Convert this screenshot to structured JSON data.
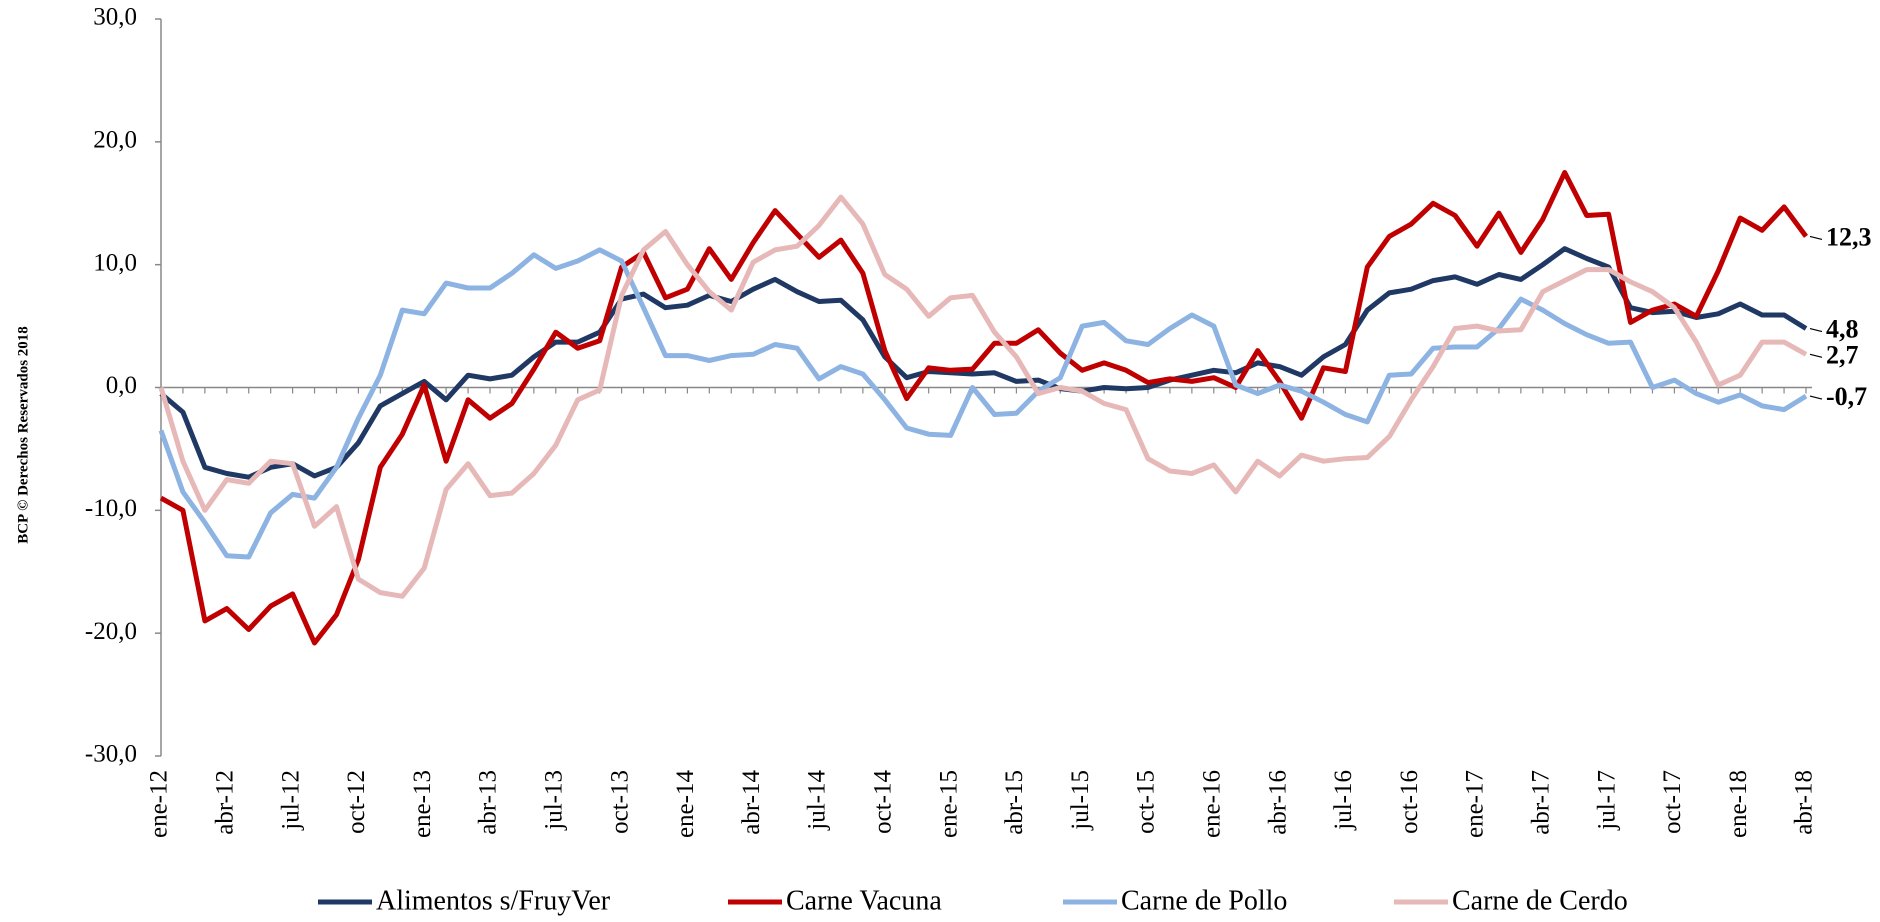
{
  "chart_data": {
    "type": "line",
    "side_note": "BCP © Derechos Reservados 2018",
    "categories": [
      "ene-12",
      null,
      null,
      "abr-12",
      null,
      null,
      "jul-12",
      null,
      null,
      "oct-12",
      null,
      null,
      "ene-13",
      null,
      null,
      "abr-13",
      null,
      null,
      "jul-13",
      null,
      null,
      "oct-13",
      null,
      null,
      "ene-14",
      null,
      null,
      "abr-14",
      null,
      null,
      "jul-14",
      null,
      null,
      "oct-14",
      null,
      null,
      "ene-15",
      null,
      null,
      "abr-15",
      null,
      null,
      "jul-15",
      null,
      null,
      "oct-15",
      null,
      null,
      "ene-16",
      null,
      null,
      "abr-16",
      null,
      null,
      "jul-16",
      null,
      null,
      "oct-16",
      null,
      null,
      "ene-17",
      null,
      null,
      "abr-17",
      null,
      null,
      "jul-17",
      null,
      null,
      "oct-17",
      null,
      null,
      "ene-18",
      null,
      null,
      "abr-18"
    ],
    "series": [
      {
        "name": "Alimentos s/FruyVer",
        "color": "#1f3864",
        "values": [
          -0.5,
          -2,
          -6.5,
          -7,
          -7.3,
          -6.5,
          -6.2,
          -7.2,
          -6.5,
          -4.5,
          -1.5,
          -0.5,
          0.5,
          -1,
          1,
          0.7,
          1,
          2.5,
          3.7,
          3.7,
          4.5,
          7.2,
          7.6,
          6.5,
          6.7,
          7.5,
          7,
          8,
          8.8,
          7.8,
          7,
          7.1,
          5.5,
          2.5,
          0.8,
          1.3,
          1.2,
          1.1,
          1.2,
          0.5,
          0.6,
          -0.1,
          -0.3,
          0,
          -0.1,
          0,
          0.6,
          1,
          1.4,
          1.2,
          2,
          1.7,
          1,
          2.5,
          3.5,
          6.3,
          7.7,
          8,
          8.7,
          9,
          8.4,
          9.2,
          8.8,
          10,
          11.3,
          10.5,
          9.8,
          6.5,
          6.1,
          6.2,
          5.7,
          6,
          6.8,
          5.9,
          5.9,
          4.8
        ],
        "value_labels": {
          "75": "4,8"
        }
      },
      {
        "name": "Carne Vacuna",
        "color": "#c00000",
        "values": [
          -9,
          -10,
          -19,
          -18,
          -19.7,
          -17.8,
          -16.8,
          -20.8,
          -18.5,
          -14,
          -6.5,
          -3.8,
          0.2,
          -6,
          -1,
          -2.5,
          -1.3,
          1.5,
          4.5,
          3.2,
          3.8,
          9.8,
          11,
          7.3,
          8,
          11.3,
          8.8,
          11.8,
          14.4,
          12.5,
          10.6,
          12,
          9.3,
          3,
          -0.9,
          1.6,
          1.4,
          1.5,
          3.6,
          3.6,
          4.7,
          2.8,
          1.4,
          2,
          1.4,
          0.4,
          0.7,
          0.5,
          0.8,
          0,
          3,
          0.5,
          -2.5,
          1.6,
          1.3,
          9.8,
          12.3,
          13.3,
          15,
          14,
          11.5,
          14.2,
          11,
          13.7,
          17.5,
          14,
          14.1,
          5.3,
          6.3,
          6.8,
          5.8,
          9.5,
          13.8,
          12.8,
          14.7,
          12.3
        ],
        "value_labels": {
          "75": "12,3"
        }
      },
      {
        "name": "Carne de Pollo",
        "color": "#8db3e2",
        "values": [
          -3.5,
          -8.5,
          -11,
          -13.7,
          -13.8,
          -10.2,
          -8.7,
          -9,
          -6.5,
          -2.5,
          1,
          6.3,
          6,
          8.5,
          8.1,
          8.1,
          9.3,
          10.8,
          9.7,
          10.3,
          11.2,
          10.3,
          6.5,
          2.6,
          2.6,
          2.2,
          2.6,
          2.7,
          3.5,
          3.2,
          0.7,
          1.7,
          1.1,
          -1,
          -3.3,
          -3.8,
          -3.9,
          0,
          -2.2,
          -2.1,
          -0.3,
          0.8,
          5,
          5.3,
          3.8,
          3.5,
          4.8,
          5.9,
          5,
          0.2,
          -0.5,
          0.2,
          -0.3,
          -1.2,
          -2.2,
          -2.8,
          1,
          1.1,
          3.2,
          3.3,
          3.3,
          4.8,
          7.2,
          6.3,
          5.2,
          4.3,
          3.6,
          3.7,
          0,
          0.6,
          -0.5,
          -1.2,
          -0.6,
          -1.5,
          -1.8,
          -0.7
        ],
        "value_labels": {
          "75": "-0,7"
        }
      },
      {
        "name": "Carne de Cerdo",
        "color": "#e6b8b7",
        "values": [
          0,
          -6,
          -10,
          -7.5,
          -7.8,
          -6,
          -6.2,
          -11.3,
          -9.7,
          -15.6,
          -16.7,
          -17,
          -14.7,
          -8.3,
          -6.2,
          -8.8,
          -8.6,
          -7,
          -4.7,
          -1,
          -0.2,
          7.5,
          11.2,
          12.7,
          10,
          7.8,
          6.3,
          10.2,
          11.2,
          11.5,
          13.2,
          15.5,
          13.3,
          9.2,
          8,
          5.8,
          7.3,
          7.5,
          4.5,
          2.5,
          -0.5,
          0,
          -0.3,
          -1.3,
          -1.8,
          -5.8,
          -6.8,
          -7,
          -6.3,
          -8.5,
          -6,
          -7.2,
          -5.5,
          -6,
          -5.8,
          -5.7,
          -4,
          -1,
          1.7,
          4.8,
          5,
          4.6,
          4.7,
          7.8,
          8.7,
          9.6,
          9.6,
          8.6,
          7.8,
          6.5,
          3.7,
          0.2,
          1,
          3.7,
          3.7,
          2.7
        ],
        "value_labels": {
          "75": "2,7"
        }
      }
    ],
    "ylim": [
      -30,
      30
    ],
    "yticks": [
      {
        "value": -30,
        "label": "-30,0"
      },
      {
        "value": -20,
        "label": "-20,0"
      },
      {
        "value": -10,
        "label": "-10,0"
      },
      {
        "value": 0,
        "label": "0,0"
      },
      {
        "value": 10,
        "label": "10,0"
      },
      {
        "value": 20,
        "label": "20,0"
      },
      {
        "value": 30,
        "label": "30,0"
      }
    ],
    "legend": "bottom"
  }
}
